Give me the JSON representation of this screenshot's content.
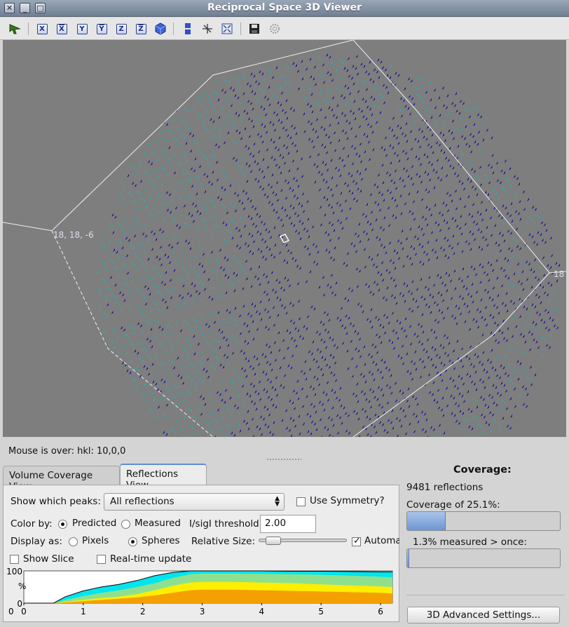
{
  "window": {
    "title": "Reciprocal Space 3D Viewer"
  },
  "toolbar": {
    "axes": [
      "X",
      "X",
      "Y",
      "Y",
      "Z",
      "Z"
    ],
    "icons": [
      "select-tool-icon",
      "view-x-icon",
      "view-neg-x-icon",
      "view-y-icon",
      "view-neg-y-icon",
      "view-z-icon",
      "view-neg-z-icon",
      "cube-icon",
      "slice-icon",
      "axes-icon",
      "fit-view-icon",
      "save-icon",
      "settings-icon"
    ]
  },
  "view": {
    "background": "#7e7e7e",
    "predicted_color": "#0a0a9c",
    "measured_color": "#1fb3b3",
    "label_left": "18, 18, -6",
    "label_right": "18"
  },
  "status": {
    "mouse_over": "Mouse is over: hkl: 10,0,0"
  },
  "tabs": [
    {
      "label": "Volume Coverage View",
      "active": false
    },
    {
      "label": "Reflections View",
      "active": true
    }
  ],
  "reflections": {
    "show_peaks_label": "Show which peaks:",
    "show_peaks_value": "All reflections",
    "use_symmetry_label": "Use Symmetry?",
    "use_symmetry_checked": false,
    "color_by_label": "Color by:",
    "color_predicted": "Predicted",
    "color_measured": "Measured",
    "color_selected": "Predicted",
    "threshold_label": "I/sigI threshold",
    "threshold_value": "2.00",
    "display_as_label": "Display as:",
    "display_pixels": "Pixels",
    "display_spheres": "Spheres",
    "display_selected": "Spheres",
    "relative_size_label": "Relative Size:",
    "relative_size_fraction": 0.1,
    "automatic_label": "Automa",
    "automatic_checked": true,
    "show_slice_label": "Show Slice",
    "show_slice_checked": false,
    "realtime_label": "Real-time update",
    "realtime_checked": false
  },
  "coverage": {
    "header": "Coverage:",
    "reflections_text": "9481 reflections",
    "coverage_text": "Coverage of  25.1%:",
    "coverage_fraction": 0.251,
    "measured_text": "1.3% measured > once:",
    "measured_fraction": 0.013,
    "advanced_button": "3D Advanced Settings..."
  },
  "chart_data": {
    "type": "area",
    "title": "",
    "xlabel": "",
    "ylabel": "%",
    "xlim": [
      0,
      6.2
    ],
    "ylim": [
      0,
      100
    ],
    "x_ticks": [
      "0",
      "1",
      "2",
      "3",
      "4",
      "5",
      "6"
    ],
    "y_ticks": [
      "100",
      "0"
    ],
    "y_tick_left_cut": "0",
    "x": [
      0,
      0.5,
      0.7,
      1.0,
      1.3,
      1.6,
      1.9,
      2.2,
      2.5,
      2.8,
      3.0,
      3.5,
      4.0,
      4.5,
      5.0,
      5.5,
      6.0,
      6.2
    ],
    "series": [
      {
        "color": "#00e5ee",
        "values": [
          0,
          0,
          20,
          38,
          50,
          58,
          70,
          85,
          95,
          100,
          100,
          100,
          100,
          99,
          99,
          98,
          97,
          97
        ]
      },
      {
        "color": "#8ee08e",
        "values": [
          0,
          0,
          10,
          22,
          32,
          40,
          50,
          62,
          78,
          90,
          92,
          92,
          91,
          90,
          88,
          85,
          82,
          80
        ]
      },
      {
        "color": "#ffee00",
        "values": [
          0,
          0,
          4,
          10,
          16,
          20,
          28,
          40,
          54,
          64,
          66,
          66,
          64,
          62,
          58,
          55,
          52,
          50
        ]
      },
      {
        "color": "#f4a000",
        "values": [
          0,
          0,
          2,
          6,
          10,
          14,
          18,
          24,
          32,
          40,
          42,
          42,
          40,
          38,
          36,
          34,
          32,
          30
        ]
      }
    ]
  }
}
